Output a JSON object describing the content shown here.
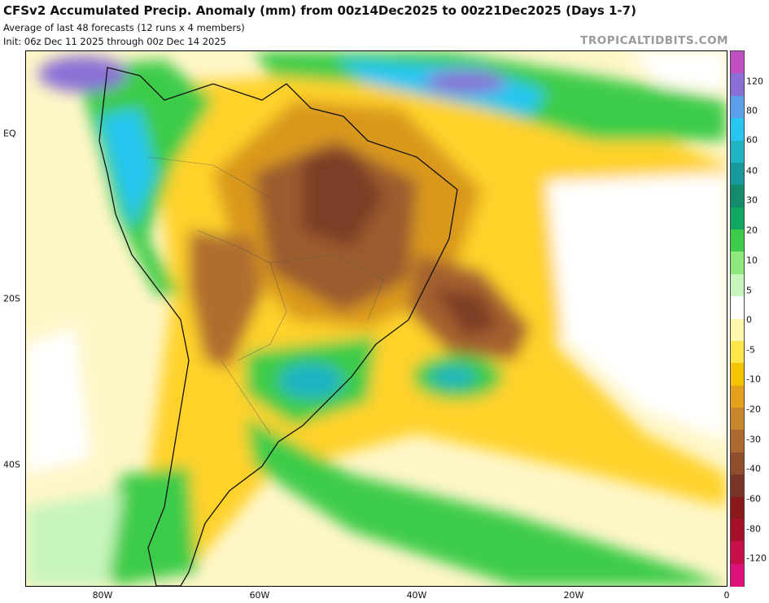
{
  "header": {
    "title": "CFSv2 Accumulated Precip. Anomaly (mm) from 00z14Dec2025 to 00z21Dec2025 (Days 1-7)",
    "line2": "Average of last 48 forecasts (12 runs x 4 members)",
    "line3": "Init: 06z Dec 11 2025 through 00z Dec 14 2025",
    "watermark": "TROPICALTIDBITS.COM"
  },
  "axes": {
    "lat_labels": [
      "EQ",
      "20S",
      "40S"
    ],
    "lon_labels": [
      "80W",
      "60W",
      "40W",
      "20W",
      "0"
    ]
  },
  "colorbar": {
    "labels": [
      "120",
      "80",
      "60",
      "40",
      "30",
      "20",
      "10",
      "5",
      "0",
      "-5",
      "-10",
      "-20",
      "-30",
      "-40",
      "-60",
      "-80",
      "-120"
    ],
    "colors": [
      "#c04fc4",
      "#8a6fd6",
      "#5aa0ec",
      "#27c6f0",
      "#1fb3c4",
      "#179a9c",
      "#138c6c",
      "#10a860",
      "#3ccc4a",
      "#8ee87c",
      "#c8f5bc",
      "#ffffff",
      "#fff7b0",
      "#ffe64a",
      "#f5c400",
      "#e3a21a",
      "#c9852a",
      "#ad6a30",
      "#8f4e2c",
      "#7a3426",
      "#8a1a1a",
      "#a80f2a",
      "#c70f4a",
      "#e0107a"
    ]
  }
}
